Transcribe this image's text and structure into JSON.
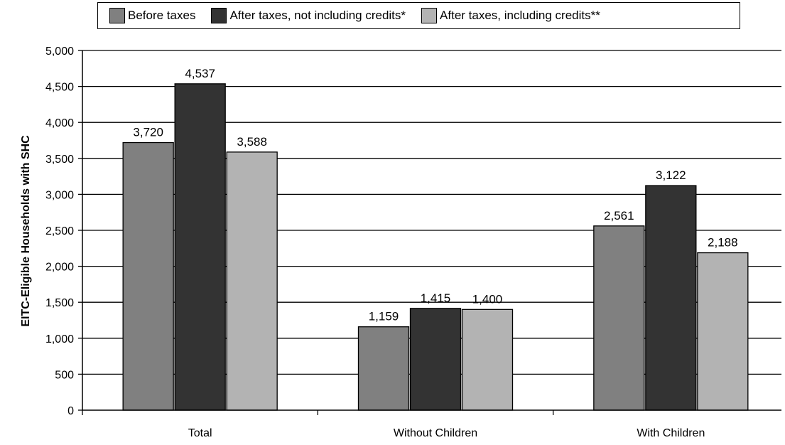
{
  "chart_data": {
    "type": "bar",
    "title": "",
    "xlabel": "",
    "ylabel": "EITC-Eligible Households with SHC",
    "categories": [
      "Total",
      "Without Children",
      "With Children"
    ],
    "series": [
      {
        "name": "Before taxes",
        "values": [
          3720,
          1159,
          2561
        ],
        "labels": [
          "3,720",
          "1,159",
          "2,561"
        ],
        "color": "#808080"
      },
      {
        "name": "After taxes, not including credits*",
        "values": [
          4537,
          1415,
          3122
        ],
        "labels": [
          "4,537",
          "1,415",
          "3,122"
        ],
        "color": "#333333"
      },
      {
        "name": "After taxes, including credits**",
        "values": [
          3588,
          1400,
          2188
        ],
        "labels": [
          "3,588",
          "1,400",
          "2,188"
        ],
        "color": "#b3b3b3"
      }
    ],
    "ylim": [
      0,
      5000
    ],
    "yticks": [
      0,
      500,
      1000,
      1500,
      2000,
      2500,
      3000,
      3500,
      4000,
      4500,
      5000
    ],
    "ytick_labels": [
      "0",
      "500",
      "1,000",
      "1,500",
      "2,000",
      "2,500",
      "3,000",
      "3,500",
      "4,000",
      "4,500",
      "5,000"
    ],
    "grid": true,
    "legend_position": "top"
  }
}
